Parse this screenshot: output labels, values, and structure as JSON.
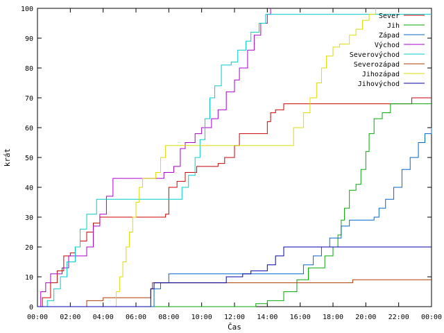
{
  "chart_data": {
    "type": "line",
    "xlabel": "Čas",
    "ylabel": "krát",
    "xlim": [
      0,
      24
    ],
    "ylim": [
      0,
      100
    ],
    "x_ticks": [
      "00:00",
      "02:00",
      "04:00",
      "06:00",
      "08:00",
      "10:00",
      "12:00",
      "14:00",
      "16:00",
      "18:00",
      "20:00",
      "22:00",
      "00:00"
    ],
    "y_ticks": [
      "0",
      "10",
      "20",
      "30",
      "40",
      "50",
      "60",
      "70",
      "80",
      "90",
      "100"
    ],
    "grid": false,
    "legend_position": "top-right",
    "series": [
      {
        "name": "Sever",
        "color": "#cc0000",
        "points": [
          [
            0,
            0
          ],
          [
            0.3,
            3
          ],
          [
            0.8,
            8
          ],
          [
            1.2,
            12
          ],
          [
            1.6,
            17
          ],
          [
            2.0,
            18
          ],
          [
            2.3,
            20
          ],
          [
            2.6,
            22
          ],
          [
            3.0,
            25
          ],
          [
            3.4,
            28
          ],
          [
            3.8,
            30
          ],
          [
            6.5,
            30
          ],
          [
            7.8,
            31
          ],
          [
            8.0,
            40
          ],
          [
            8.5,
            42
          ],
          [
            9.0,
            45
          ],
          [
            9.7,
            47
          ],
          [
            11.0,
            48
          ],
          [
            11.4,
            50
          ],
          [
            12.0,
            54
          ],
          [
            12.3,
            58
          ],
          [
            13.6,
            58
          ],
          [
            14.0,
            62
          ],
          [
            14.2,
            65
          ],
          [
            14.5,
            66
          ],
          [
            15.0,
            68
          ],
          [
            22.3,
            68
          ],
          [
            22.8,
            70
          ],
          [
            24,
            70
          ]
        ]
      },
      {
        "name": "Jih",
        "color": "#00aa00",
        "points": [
          [
            0,
            0
          ],
          [
            13.0,
            0
          ],
          [
            13.3,
            1
          ],
          [
            14.0,
            2
          ],
          [
            15.0,
            5
          ],
          [
            15.8,
            9
          ],
          [
            16.5,
            13
          ],
          [
            17.5,
            17
          ],
          [
            18.0,
            20
          ],
          [
            18.3,
            24
          ],
          [
            18.5,
            29
          ],
          [
            18.7,
            33
          ],
          [
            19.0,
            39
          ],
          [
            19.4,
            41
          ],
          [
            19.7,
            46
          ],
          [
            20.0,
            52
          ],
          [
            20.2,
            58
          ],
          [
            20.5,
            63
          ],
          [
            21.0,
            65
          ],
          [
            21.5,
            68
          ],
          [
            24,
            68
          ]
        ]
      },
      {
        "name": "Západ",
        "color": "#0066cc",
        "points": [
          [
            0,
            0
          ],
          [
            6.8,
            0
          ],
          [
            7.1,
            6
          ],
          [
            7.5,
            8
          ],
          [
            8.0,
            11
          ],
          [
            15.5,
            11
          ],
          [
            16.2,
            14
          ],
          [
            16.8,
            17
          ],
          [
            17.3,
            20
          ],
          [
            17.8,
            23
          ],
          [
            18.5,
            27
          ],
          [
            19.0,
            29
          ],
          [
            20.5,
            30
          ],
          [
            20.8,
            33
          ],
          [
            21.2,
            36
          ],
          [
            21.7,
            40
          ],
          [
            22.2,
            46
          ],
          [
            22.7,
            50
          ],
          [
            23.2,
            55
          ],
          [
            23.6,
            58
          ],
          [
            24,
            60
          ]
        ]
      },
      {
        "name": "Východ",
        "color": "#aa00cc",
        "points": [
          [
            0,
            0
          ],
          [
            0.2,
            5
          ],
          [
            0.5,
            8
          ],
          [
            0.8,
            11
          ],
          [
            1.5,
            13
          ],
          [
            1.9,
            17
          ],
          [
            3.0,
            20
          ],
          [
            3.4,
            27
          ],
          [
            3.8,
            31
          ],
          [
            4.2,
            37
          ],
          [
            4.6,
            43
          ],
          [
            7.3,
            43
          ],
          [
            7.7,
            45
          ],
          [
            8.3,
            47
          ],
          [
            8.7,
            53
          ],
          [
            9.0,
            55
          ],
          [
            9.6,
            58
          ],
          [
            10.0,
            60
          ],
          [
            10.6,
            63
          ],
          [
            11.0,
            66
          ],
          [
            11.5,
            72
          ],
          [
            12.0,
            76
          ],
          [
            12.3,
            80
          ],
          [
            12.8,
            86
          ],
          [
            13.2,
            91
          ],
          [
            13.6,
            95
          ],
          [
            14.0,
            98
          ],
          [
            14.2,
            100
          ]
        ]
      },
      {
        "name": "Severovýchod",
        "color": "#00cccc",
        "points": [
          [
            0,
            0
          ],
          [
            0.6,
            2
          ],
          [
            1.0,
            6
          ],
          [
            1.4,
            10
          ],
          [
            1.8,
            15
          ],
          [
            2.3,
            20
          ],
          [
            2.6,
            26
          ],
          [
            3.0,
            31
          ],
          [
            3.6,
            36
          ],
          [
            8.5,
            36
          ],
          [
            8.8,
            40
          ],
          [
            9.2,
            44
          ],
          [
            9.6,
            50
          ],
          [
            9.9,
            56
          ],
          [
            10.2,
            63
          ],
          [
            10.5,
            70
          ],
          [
            10.8,
            74
          ],
          [
            11.2,
            81
          ],
          [
            11.8,
            82
          ],
          [
            12.2,
            86
          ],
          [
            12.7,
            89
          ],
          [
            13.0,
            92
          ],
          [
            13.5,
            95
          ],
          [
            13.9,
            98
          ],
          [
            24,
            98
          ]
        ]
      },
      {
        "name": "Severozápad",
        "color": "#b03a00",
        "points": [
          [
            0,
            0
          ],
          [
            2.8,
            0
          ],
          [
            3.0,
            2
          ],
          [
            3.8,
            2
          ],
          [
            4.0,
            3
          ],
          [
            6.6,
            3
          ],
          [
            6.9,
            6
          ],
          [
            7.0,
            8
          ],
          [
            19.0,
            8
          ],
          [
            19.2,
            9
          ],
          [
            24,
            9
          ]
        ]
      },
      {
        "name": "Jihozápad",
        "color": "#dddd00",
        "points": [
          [
            0,
            0
          ],
          [
            4.6,
            0
          ],
          [
            4.8,
            5
          ],
          [
            5.0,
            10
          ],
          [
            5.2,
            15
          ],
          [
            5.4,
            20
          ],
          [
            5.6,
            25
          ],
          [
            5.8,
            30
          ],
          [
            6.0,
            35
          ],
          [
            6.2,
            40
          ],
          [
            6.4,
            43
          ],
          [
            7.2,
            45
          ],
          [
            7.5,
            50
          ],
          [
            7.8,
            54
          ],
          [
            15.3,
            54
          ],
          [
            15.6,
            60
          ],
          [
            16.2,
            65
          ],
          [
            16.6,
            70
          ],
          [
            17.0,
            75
          ],
          [
            17.3,
            80
          ],
          [
            17.6,
            84
          ],
          [
            18.0,
            87
          ],
          [
            18.4,
            88
          ],
          [
            19.0,
            91
          ],
          [
            19.4,
            93
          ],
          [
            19.8,
            96
          ],
          [
            20.2,
            98
          ],
          [
            20.6,
            100
          ]
        ]
      },
      {
        "name": "Jihovýchod",
        "color": "#0000aa",
        "points": [
          [
            0,
            0
          ],
          [
            6.6,
            0
          ],
          [
            6.9,
            6
          ],
          [
            7.1,
            8
          ],
          [
            11.0,
            8
          ],
          [
            11.5,
            10
          ],
          [
            12.5,
            11
          ],
          [
            13.0,
            12
          ],
          [
            14.0,
            14
          ],
          [
            14.5,
            17
          ],
          [
            15.0,
            20
          ],
          [
            24,
            20
          ]
        ]
      }
    ]
  }
}
